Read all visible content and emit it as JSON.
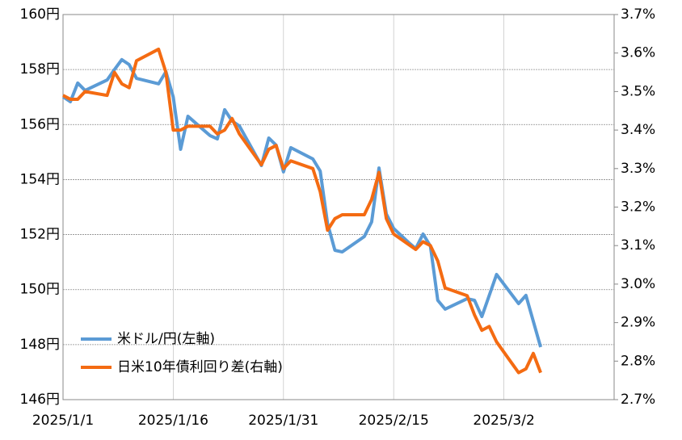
{
  "chart_data": {
    "type": "line",
    "xlim": [
      "2025/1/1",
      "2025/3/17"
    ],
    "xticks": [
      "2025/1/1",
      "2025/1/16",
      "2025/1/31",
      "2025/2/15",
      "2025/3/2"
    ],
    "ylim": [
      146,
      160
    ],
    "yticks": [
      {
        "value": 146,
        "label": "146円"
      },
      {
        "value": 148,
        "label": "148円"
      },
      {
        "value": 150,
        "label": "150円"
      },
      {
        "value": 152,
        "label": "152円"
      },
      {
        "value": 154,
        "label": "154円"
      },
      {
        "value": 156,
        "label": "156円"
      },
      {
        "value": 158,
        "label": "158円"
      },
      {
        "value": 160,
        "label": "160円"
      }
    ],
    "y2lim": [
      2.7,
      3.7
    ],
    "y2ticks": [
      {
        "value": 2.7,
        "label": "2.7%"
      },
      {
        "value": 2.8,
        "label": "2.8%"
      },
      {
        "value": 2.9,
        "label": "2.9%"
      },
      {
        "value": 3.0,
        "label": "3.0%"
      },
      {
        "value": 3.1,
        "label": "3.1%"
      },
      {
        "value": 3.2,
        "label": "3.2%"
      },
      {
        "value": 3.3,
        "label": "3.3%"
      },
      {
        "value": 3.4,
        "label": "3.4%"
      },
      {
        "value": 3.5,
        "label": "3.5%"
      },
      {
        "value": 3.6,
        "label": "3.6%"
      },
      {
        "value": 3.7,
        "label": "3.7%"
      }
    ],
    "grid": true,
    "legend": "lower left",
    "series": [
      {
        "name": "米ドル/円(左軸)",
        "color": "#5b9bd5",
        "x": [
          "2025/1/1",
          "2025/1/2",
          "2025/1/3",
          "2025/1/4",
          "2025/1/7",
          "2025/1/8",
          "2025/1/9",
          "2025/1/10",
          "2025/1/11",
          "2025/1/14",
          "2025/1/15",
          "2025/1/16",
          "2025/1/17",
          "2025/1/18",
          "2025/1/21",
          "2025/1/22",
          "2025/1/23",
          "2025/1/24",
          "2025/1/25",
          "2025/1/28",
          "2025/1/29",
          "2025/1/30",
          "2025/1/31",
          "2025/2/1",
          "2025/2/4",
          "2025/2/5",
          "2025/2/6",
          "2025/2/7",
          "2025/2/8",
          "2025/2/11",
          "2025/2/12",
          "2025/2/13",
          "2025/2/14",
          "2025/2/15",
          "2025/2/17",
          "2025/2/18",
          "2025/2/19",
          "2025/2/20",
          "2025/2/21",
          "2025/2/22",
          "2025/2/25",
          "2025/2/26",
          "2025/2/27",
          "2025/3/1",
          "2025/3/4",
          "2025/3/5",
          "2025/3/7"
        ],
        "values": [
          157.01,
          156.83,
          157.51,
          157.24,
          157.62,
          158.0,
          158.36,
          158.18,
          157.68,
          157.48,
          157.92,
          157.0,
          155.1,
          156.3,
          155.6,
          155.48,
          156.54,
          156.13,
          155.95,
          154.51,
          155.51,
          155.25,
          154.28,
          155.16,
          154.75,
          154.31,
          152.4,
          151.43,
          151.37,
          151.93,
          152.46,
          154.42,
          152.75,
          152.22,
          151.72,
          151.49,
          152.02,
          151.58,
          149.61,
          149.29,
          149.67,
          149.61,
          149.02,
          150.55,
          149.49,
          149.79,
          147.91
        ]
      },
      {
        "name": "日米10年債利回り差(右軸)",
        "color": "#f46b12",
        "axis": "y2",
        "x": [
          "2025/1/1",
          "2025/1/2",
          "2025/1/3",
          "2025/1/4",
          "2025/1/7",
          "2025/1/8",
          "2025/1/9",
          "2025/1/10",
          "2025/1/11",
          "2025/1/14",
          "2025/1/15",
          "2025/1/16",
          "2025/1/17",
          "2025/1/18",
          "2025/1/21",
          "2025/1/22",
          "2025/1/23",
          "2025/1/24",
          "2025/1/25",
          "2025/1/28",
          "2025/1/29",
          "2025/1/30",
          "2025/1/31",
          "2025/2/1",
          "2025/2/4",
          "2025/2/5",
          "2025/2/6",
          "2025/2/7",
          "2025/2/8",
          "2025/2/11",
          "2025/2/12",
          "2025/2/13",
          "2025/2/14",
          "2025/2/15",
          "2025/2/18",
          "2025/2/19",
          "2025/2/20",
          "2025/2/21",
          "2025/2/22",
          "2025/2/25",
          "2025/2/26",
          "2025/2/27",
          "2025/2/28",
          "2025/3/1",
          "2025/3/4",
          "2025/3/5",
          "2025/3/6",
          "2025/3/7"
        ],
        "values": [
          3.49,
          3.48,
          3.48,
          3.5,
          3.49,
          3.55,
          3.52,
          3.51,
          3.58,
          3.61,
          3.55,
          3.4,
          3.4,
          3.41,
          3.41,
          3.39,
          3.4,
          3.43,
          3.39,
          3.31,
          3.35,
          3.36,
          3.3,
          3.32,
          3.3,
          3.24,
          3.14,
          3.17,
          3.18,
          3.18,
          3.22,
          3.29,
          3.17,
          3.13,
          3.09,
          3.11,
          3.1,
          3.06,
          2.99,
          2.97,
          2.92,
          2.88,
          2.89,
          2.85,
          2.77,
          2.78,
          2.82,
          2.77
        ]
      }
    ]
  }
}
